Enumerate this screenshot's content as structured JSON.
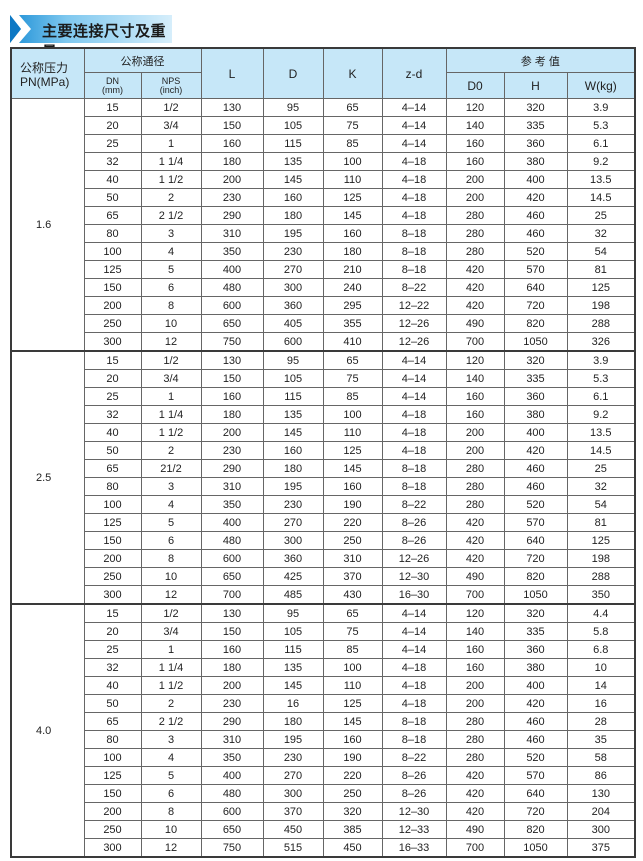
{
  "title": "主要连接尺寸及重量",
  "header": {
    "pn_line1": "公称压力",
    "pn_line2": "PN(MPa)",
    "nominal_diameter": "公称通径",
    "dn_line1": "DN",
    "dn_line2": "(mm)",
    "nps_line1": "NPS",
    "nps_line2": "(inch)",
    "L": "L",
    "D": "D",
    "K": "K",
    "zd": "z-d",
    "reference": "参 考 值",
    "D0": "D0",
    "H": "H",
    "W": "W(kg)"
  },
  "sections": [
    {
      "pn": "1.6",
      "rows": [
        [
          "15",
          "1/2",
          "130",
          "95",
          "65",
          "4–14",
          "120",
          "320",
          "3.9"
        ],
        [
          "20",
          "3/4",
          "150",
          "105",
          "75",
          "4–14",
          "140",
          "335",
          "5.3"
        ],
        [
          "25",
          "1",
          "160",
          "115",
          "85",
          "4–14",
          "160",
          "360",
          "6.1"
        ],
        [
          "32",
          "1 1/4",
          "180",
          "135",
          "100",
          "4–18",
          "160",
          "380",
          "9.2"
        ],
        [
          "40",
          "1 1/2",
          "200",
          "145",
          "110",
          "4–18",
          "200",
          "400",
          "13.5"
        ],
        [
          "50",
          "2",
          "230",
          "160",
          "125",
          "4–18",
          "200",
          "420",
          "14.5"
        ],
        [
          "65",
          "2 1/2",
          "290",
          "180",
          "145",
          "4–18",
          "280",
          "460",
          "25"
        ],
        [
          "80",
          "3",
          "310",
          "195",
          "160",
          "8–18",
          "280",
          "460",
          "32"
        ],
        [
          "100",
          "4",
          "350",
          "230",
          "180",
          "8–18",
          "280",
          "520",
          "54"
        ],
        [
          "125",
          "5",
          "400",
          "270",
          "210",
          "8–18",
          "420",
          "570",
          "81"
        ],
        [
          "150",
          "6",
          "480",
          "300",
          "240",
          "8–22",
          "420",
          "640",
          "125"
        ],
        [
          "200",
          "8",
          "600",
          "360",
          "295",
          "12–22",
          "420",
          "720",
          "198"
        ],
        [
          "250",
          "10",
          "650",
          "405",
          "355",
          "12–26",
          "490",
          "820",
          "288"
        ],
        [
          "300",
          "12",
          "750",
          "600",
          "410",
          "12–26",
          "700",
          "1050",
          "326"
        ]
      ]
    },
    {
      "pn": "2.5",
      "rows": [
        [
          "15",
          "1/2",
          "130",
          "95",
          "65",
          "4–14",
          "120",
          "320",
          "3.9"
        ],
        [
          "20",
          "3/4",
          "150",
          "105",
          "75",
          "4–14",
          "140",
          "335",
          "5.3"
        ],
        [
          "25",
          "1",
          "160",
          "115",
          "85",
          "4–14",
          "160",
          "360",
          "6.1"
        ],
        [
          "32",
          "1 1/4",
          "180",
          "135",
          "100",
          "4–18",
          "160",
          "380",
          "9.2"
        ],
        [
          "40",
          "1 1/2",
          "200",
          "145",
          "110",
          "4–18",
          "200",
          "400",
          "13.5"
        ],
        [
          "50",
          "2",
          "230",
          "160",
          "125",
          "4–18",
          "200",
          "420",
          "14.5"
        ],
        [
          "65",
          "21/2",
          "290",
          "180",
          "145",
          "8–18",
          "280",
          "460",
          "25"
        ],
        [
          "80",
          "3",
          "310",
          "195",
          "160",
          "8–18",
          "280",
          "460",
          "32"
        ],
        [
          "100",
          "4",
          "350",
          "230",
          "190",
          "8–22",
          "280",
          "520",
          "54"
        ],
        [
          "125",
          "5",
          "400",
          "270",
          "220",
          "8–26",
          "420",
          "570",
          "81"
        ],
        [
          "150",
          "6",
          "480",
          "300",
          "250",
          "8–26",
          "420",
          "640",
          "125"
        ],
        [
          "200",
          "8",
          "600",
          "360",
          "310",
          "12–26",
          "420",
          "720",
          "198"
        ],
        [
          "250",
          "10",
          "650",
          "425",
          "370",
          "12–30",
          "490",
          "820",
          "288"
        ],
        [
          "300",
          "12",
          "700",
          "485",
          "430",
          "16–30",
          "700",
          "1050",
          "350"
        ]
      ]
    },
    {
      "pn": "4.0",
      "rows": [
        [
          "15",
          "1/2",
          "130",
          "95",
          "65",
          "4–14",
          "120",
          "320",
          "4.4"
        ],
        [
          "20",
          "3/4",
          "150",
          "105",
          "75",
          "4–14",
          "140",
          "335",
          "5.8"
        ],
        [
          "25",
          "1",
          "160",
          "115",
          "85",
          "4–14",
          "160",
          "360",
          "6.8"
        ],
        [
          "32",
          "1 1/4",
          "180",
          "135",
          "100",
          "4–18",
          "160",
          "380",
          "10"
        ],
        [
          "40",
          "1 1/2",
          "200",
          "145",
          "110",
          "4–18",
          "200",
          "400",
          "14"
        ],
        [
          "50",
          "2",
          "230",
          "16",
          "125",
          "4–18",
          "200",
          "420",
          "16"
        ],
        [
          "65",
          "2 1/2",
          "290",
          "180",
          "145",
          "8–18",
          "280",
          "460",
          "28"
        ],
        [
          "80",
          "3",
          "310",
          "195",
          "160",
          "8–18",
          "280",
          "460",
          "35"
        ],
        [
          "100",
          "4",
          "350",
          "230",
          "190",
          "8–22",
          "280",
          "520",
          "58"
        ],
        [
          "125",
          "5",
          "400",
          "270",
          "220",
          "8–26",
          "420",
          "570",
          "86"
        ],
        [
          "150",
          "6",
          "480",
          "300",
          "250",
          "8–26",
          "420",
          "640",
          "130"
        ],
        [
          "200",
          "8",
          "600",
          "370",
          "320",
          "12–30",
          "420",
          "720",
          "204"
        ],
        [
          "250",
          "10",
          "650",
          "450",
          "385",
          "12–33",
          "490",
          "820",
          "300"
        ],
        [
          "300",
          "12",
          "750",
          "515",
          "450",
          "16–33",
          "700",
          "1050",
          "375"
        ]
      ]
    }
  ]
}
